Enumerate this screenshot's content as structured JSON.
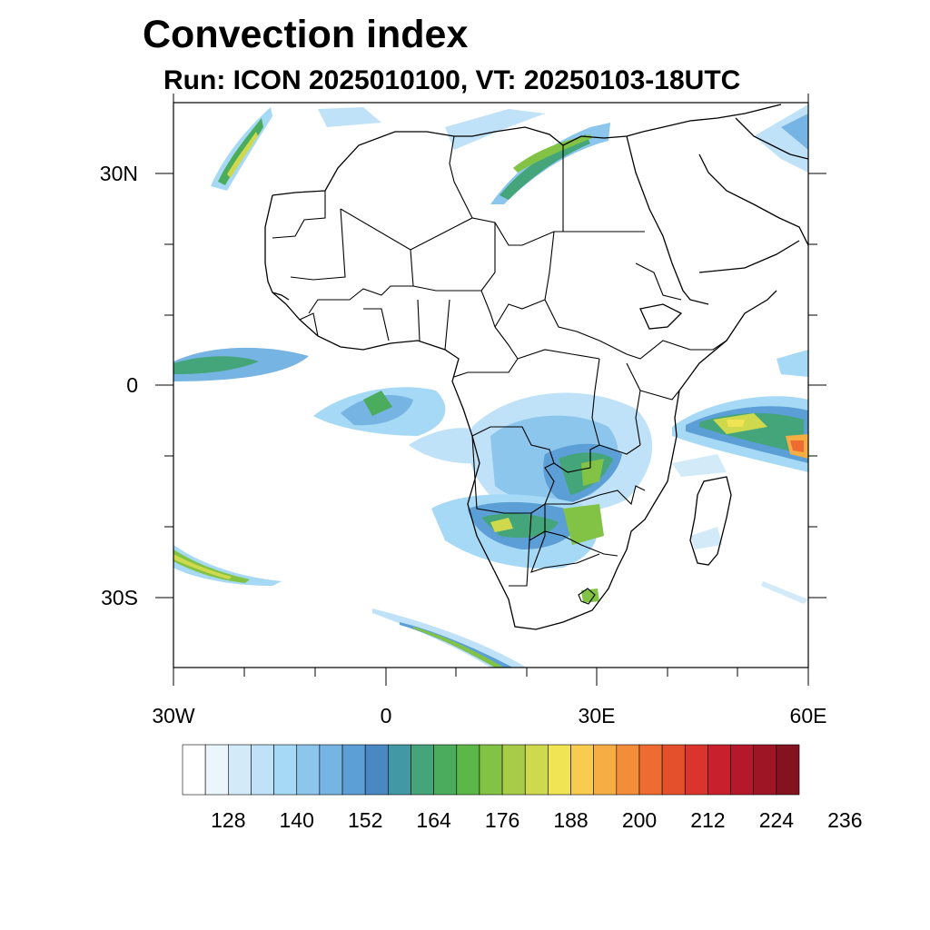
{
  "title": "Convection index",
  "subtitle": "Run: ICON 2025010100,  VT: 20250103-18UTC",
  "axes": {
    "lat_labels": [
      "30N",
      "0",
      "30S"
    ],
    "lon_labels": [
      "30W",
      "0",
      "30E",
      "60E"
    ]
  },
  "map_region": {
    "lon_range": [
      -30,
      60
    ],
    "lat_range": [
      -40,
      40
    ]
  },
  "colorbar": {
    "colors": [
      "#ffffff",
      "#eaf5fc",
      "#d3eaf9",
      "#bfe2f8",
      "#a6d9f5",
      "#8cc6ec",
      "#76b4e3",
      "#5b9fd6",
      "#4a88c4",
      "#4398a5",
      "#45a57a",
      "#4aac5c",
      "#5bb848",
      "#82c244",
      "#a9cc48",
      "#cfd94e",
      "#f0e354",
      "#f8cc4e",
      "#f6ae44",
      "#f38d3a",
      "#ee6c31",
      "#e4502b",
      "#d9352c",
      "#c8202c",
      "#b4182a",
      "#9e1525",
      "#84121f"
    ],
    "tick_labels": [
      "128",
      "140",
      "152",
      "164",
      "176",
      "188",
      "200",
      "212",
      "224",
      "236"
    ]
  }
}
